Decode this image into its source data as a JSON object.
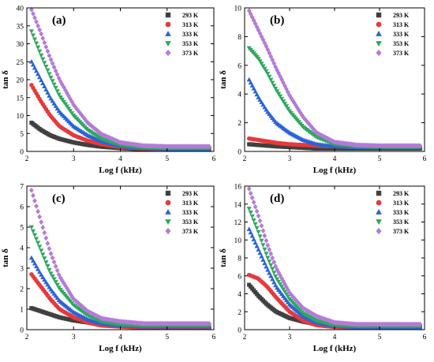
{
  "series_colors": [
    "#404040",
    "#e8383a",
    "#2a63d9",
    "#2ea85f",
    "#b57ad8"
  ],
  "series_markers": [
    "square",
    "circle",
    "triangle-up",
    "triangle-down",
    "diamond"
  ],
  "chart_data": [
    {
      "type": "scatter",
      "panel_label": "(a)",
      "xlabel": "Log f (kHz)",
      "ylabel": "tan δ",
      "xlim": [
        2,
        6
      ],
      "ylim": [
        0,
        40
      ],
      "x_ticks": [
        2,
        3,
        4,
        5,
        6
      ],
      "y_ticks": [
        0,
        5,
        10,
        15,
        20,
        25,
        30,
        35,
        40
      ],
      "legend_position": "top-right",
      "x": [
        2.1,
        2.3,
        2.5,
        2.7,
        3.0,
        3.3,
        3.6,
        4.0,
        4.5,
        5.0,
        5.5,
        5.9
      ],
      "series": [
        {
          "name": "293 K",
          "values": [
            8,
            6,
            4.5,
            3.5,
            2.5,
            1.8,
            1.3,
            0.9,
            0.6,
            0.5,
            0.5,
            0.5
          ]
        },
        {
          "name": "313 K",
          "values": [
            18.5,
            14,
            10,
            7,
            4.5,
            3,
            2,
            1.2,
            0.8,
            0.6,
            0.5,
            0.5
          ]
        },
        {
          "name": "333 K",
          "values": [
            25,
            20,
            15,
            11,
            7,
            4.5,
            2.8,
            1.5,
            0.9,
            0.7,
            0.6,
            0.6
          ]
        },
        {
          "name": "353 K",
          "values": [
            33.5,
            27,
            21,
            15.5,
            10,
            6,
            3.5,
            1.8,
            1.1,
            0.9,
            0.9,
            0.9
          ]
        },
        {
          "name": "373 K",
          "values": [
            39.5,
            33,
            26,
            20,
            13,
            8,
            4.8,
            2.5,
            1.6,
            1.4,
            1.4,
            1.4
          ]
        }
      ]
    },
    {
      "type": "scatter",
      "panel_label": "(b)",
      "xlabel": "Log f (kHz)",
      "ylabel": "tan δ",
      "xlim": [
        2,
        6
      ],
      "ylim": [
        0,
        10
      ],
      "x_ticks": [
        2,
        3,
        4,
        5,
        6
      ],
      "y_ticks": [
        0,
        2,
        4,
        6,
        8,
        10
      ],
      "legend_position": "top-right",
      "x": [
        2.1,
        2.3,
        2.5,
        2.7,
        3.0,
        3.3,
        3.6,
        4.0,
        4.5,
        5.0,
        5.5,
        5.9
      ],
      "series": [
        {
          "name": "293 K",
          "values": [
            0.5,
            0.45,
            0.4,
            0.35,
            0.3,
            0.25,
            0.2,
            0.2,
            0.2,
            0.2,
            0.2,
            0.2
          ]
        },
        {
          "name": "313 K",
          "values": [
            0.9,
            0.8,
            0.7,
            0.6,
            0.5,
            0.45,
            0.4,
            0.35,
            0.3,
            0.3,
            0.3,
            0.3
          ]
        },
        {
          "name": "333 K",
          "values": [
            5.0,
            3.8,
            2.8,
            2.0,
            1.3,
            0.8,
            0.5,
            0.35,
            0.3,
            0.3,
            0.3,
            0.3
          ]
        },
        {
          "name": "353 K",
          "values": [
            7.2,
            6.5,
            5.5,
            4.3,
            2.8,
            1.7,
            1.0,
            0.5,
            0.35,
            0.3,
            0.3,
            0.3
          ]
        },
        {
          "name": "373 K",
          "values": [
            9.8,
            8.5,
            7.2,
            5.8,
            3.9,
            2.4,
            1.3,
            0.65,
            0.45,
            0.4,
            0.4,
            0.4
          ]
        }
      ]
    },
    {
      "type": "scatter",
      "panel_label": "(c)",
      "xlabel": "Log f (kHz)",
      "ylabel": "tan δ",
      "xlim": [
        2,
        6
      ],
      "ylim": [
        0,
        7
      ],
      "x_ticks": [
        2,
        3,
        4,
        5,
        6
      ],
      "y_ticks": [
        0,
        1,
        2,
        3,
        4,
        5,
        6,
        7
      ],
      "legend_position": "top-right",
      "x": [
        2.1,
        2.3,
        2.5,
        2.7,
        3.0,
        3.3,
        3.6,
        4.0,
        4.5,
        5.0,
        5.5,
        5.9
      ],
      "series": [
        {
          "name": "293 K",
          "values": [
            1.05,
            0.9,
            0.75,
            0.6,
            0.45,
            0.35,
            0.25,
            0.2,
            0.15,
            0.1,
            0.1,
            0.1
          ]
        },
        {
          "name": "313 K",
          "values": [
            2.7,
            2.1,
            1.5,
            1.0,
            0.6,
            0.35,
            0.2,
            0.15,
            0.1,
            0.1,
            0.1,
            0.1
          ]
        },
        {
          "name": "333 K",
          "values": [
            3.5,
            2.7,
            2.0,
            1.4,
            0.85,
            0.5,
            0.3,
            0.2,
            0.15,
            0.15,
            0.15,
            0.15
          ]
        },
        {
          "name": "353 K",
          "values": [
            5.0,
            3.9,
            2.8,
            2.0,
            1.2,
            0.7,
            0.4,
            0.25,
            0.2,
            0.2,
            0.2,
            0.2
          ]
        },
        {
          "name": "373 K",
          "values": [
            6.8,
            5.3,
            3.8,
            2.6,
            1.5,
            0.9,
            0.55,
            0.4,
            0.3,
            0.3,
            0.3,
            0.3
          ]
        }
      ]
    },
    {
      "type": "scatter",
      "panel_label": "(d)",
      "xlabel": "Log f (kHz)",
      "ylabel": "tan δ",
      "xlim": [
        2,
        6
      ],
      "ylim": [
        0,
        16
      ],
      "x_ticks": [
        2,
        3,
        4,
        5,
        6
      ],
      "y_ticks": [
        0,
        2,
        4,
        6,
        8,
        10,
        12,
        14,
        16
      ],
      "legend_position": "top-right",
      "x": [
        2.1,
        2.3,
        2.5,
        2.7,
        3.0,
        3.3,
        3.6,
        4.0,
        4.5,
        5.0,
        5.5,
        5.9
      ],
      "series": [
        {
          "name": "293 K",
          "values": [
            5.0,
            3.8,
            2.8,
            2.0,
            1.3,
            0.9,
            0.6,
            0.4,
            0.3,
            0.3,
            0.3,
            0.3
          ]
        },
        {
          "name": "313 K",
          "values": [
            6.1,
            5.7,
            4.8,
            3.6,
            2.0,
            1.0,
            0.5,
            0.3,
            0.25,
            0.25,
            0.25,
            0.25
          ]
        },
        {
          "name": "333 K",
          "values": [
            11.2,
            9.0,
            6.8,
            4.8,
            2.8,
            1.5,
            0.8,
            0.4,
            0.3,
            0.3,
            0.3,
            0.3
          ]
        },
        {
          "name": "353 K",
          "values": [
            13.5,
            11.0,
            8.2,
            5.8,
            3.4,
            1.8,
            1.0,
            0.5,
            0.4,
            0.4,
            0.4,
            0.4
          ]
        },
        {
          "name": "373 K",
          "values": [
            15.7,
            12.8,
            9.6,
            6.9,
            4.1,
            2.4,
            1.5,
            0.8,
            0.6,
            0.6,
            0.6,
            0.6
          ]
        }
      ]
    }
  ]
}
